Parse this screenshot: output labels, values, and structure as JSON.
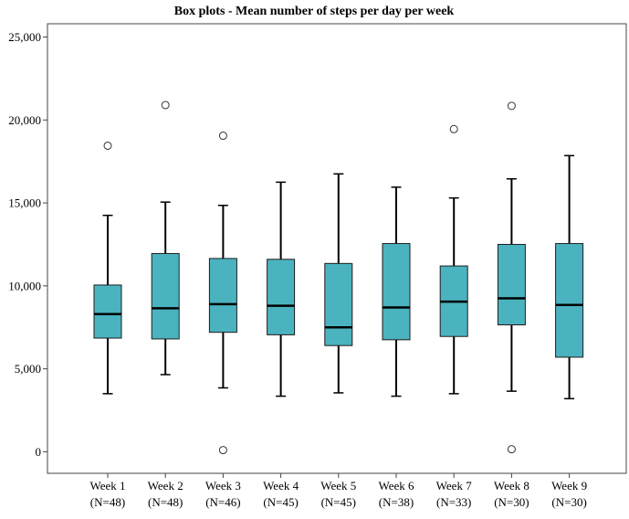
{
  "chart_data": {
    "type": "boxplot",
    "title": "Box plots - Mean number of steps per day per week",
    "xlabel": "",
    "ylabel": "",
    "ylim": [
      -1300,
      25800
    ],
    "yticks": [
      0,
      5000,
      10000,
      15000,
      20000,
      25000
    ],
    "ytick_labels": [
      "0",
      "5,000",
      "10,000",
      "15,000",
      "20,000",
      "25,000"
    ],
    "grid": false,
    "box_color": "#4bb3bf",
    "categories": [
      {
        "name": "Week 1",
        "n": "(N=48)",
        "min": 3500,
        "q1": 6850,
        "median": 8300,
        "q3": 10050,
        "max": 14250,
        "outliers": [
          18450
        ]
      },
      {
        "name": "Week 2",
        "n": "(N=48)",
        "min": 4650,
        "q1": 6800,
        "median": 8650,
        "q3": 11950,
        "max": 15050,
        "outliers": [
          20900
        ]
      },
      {
        "name": "Week 3",
        "n": "(N=46)",
        "min": 3850,
        "q1": 7200,
        "median": 8900,
        "q3": 11650,
        "max": 14850,
        "outliers": [
          19050,
          100
        ]
      },
      {
        "name": "Week 4",
        "n": "(N=45)",
        "min": 3350,
        "q1": 7050,
        "median": 8800,
        "q3": 11600,
        "max": 16250,
        "outliers": []
      },
      {
        "name": "Week 5",
        "n": "(N=45)",
        "min": 3550,
        "q1": 6400,
        "median": 7500,
        "q3": 11350,
        "max": 16750,
        "outliers": []
      },
      {
        "name": "Week 6",
        "n": "(N=38)",
        "min": 3350,
        "q1": 6750,
        "median": 8700,
        "q3": 12550,
        "max": 15950,
        "outliers": []
      },
      {
        "name": "Week 7",
        "n": "(N=33)",
        "min": 3500,
        "q1": 6950,
        "median": 9050,
        "q3": 11200,
        "max": 15300,
        "outliers": [
          19450
        ]
      },
      {
        "name": "Week 8",
        "n": "(N=30)",
        "min": 3650,
        "q1": 7650,
        "median": 9250,
        "q3": 12500,
        "max": 16450,
        "outliers": [
          20850,
          150
        ]
      },
      {
        "name": "Week 9",
        "n": "(N=30)",
        "min": 3200,
        "q1": 5700,
        "median": 8850,
        "q3": 12550,
        "max": 17850,
        "outliers": []
      }
    ]
  }
}
